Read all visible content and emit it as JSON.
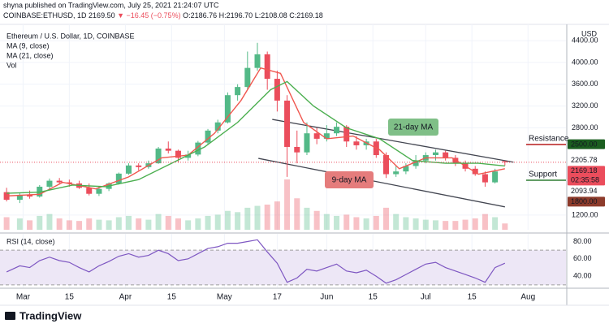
{
  "header": {
    "publisher": "shyna published on TradingView.com, July 25, 2021 21:24:07 UTC",
    "symbol": "COINBASE:ETHUSD, 1D",
    "last": "2169.50",
    "change": "▼ −16.45 (−0.75%)",
    "quote": [
      "O:2186.76",
      "H:2196.70",
      "L:2108.08",
      "C:2169.18"
    ]
  },
  "chart_data": {
    "type": "candlestick",
    "title": "Ethereum / U.S. Dollar, 1D, COINBASE",
    "currency": "USD",
    "up_color": "#53b987",
    "down_color": "#eb4d5c",
    "grid": true,
    "x": [
      -5,
      -1,
      2,
      5,
      8,
      11,
      14,
      17,
      20,
      23,
      26,
      29,
      32,
      35,
      38,
      41,
      44,
      47,
      50,
      53,
      56,
      59,
      62,
      65,
      68,
      71,
      74,
      77,
      80,
      83,
      86,
      89,
      92,
      95,
      98,
      101,
      104,
      107,
      110,
      113,
      116,
      119,
      122,
      125,
      128,
      131,
      134,
      137,
      140,
      143,
      146
    ],
    "open": [
      1620,
      1480,
      1570,
      1540,
      1720,
      1830,
      1800,
      1780,
      1700,
      1590,
      1680,
      1780,
      1960,
      2110,
      2080,
      2150,
      2420,
      2380,
      2250,
      2310,
      2530,
      2750,
      2900,
      3400,
      3550,
      3900,
      4150,
      3700,
      3300,
      2450,
      2350,
      2700,
      2600,
      2700,
      2820,
      2550,
      2480,
      2550,
      2300,
      1950,
      2000,
      2100,
      2200,
      2300,
      2350,
      2250,
      2150,
      2050,
      1950,
      1800,
      2186.76
    ],
    "high": [
      1700,
      1600,
      1650,
      1750,
      1870,
      1880,
      1850,
      1830,
      1780,
      1720,
      1800,
      1980,
      2150,
      2150,
      2200,
      2450,
      2550,
      2400,
      2380,
      2560,
      2780,
      2950,
      3450,
      3600,
      4200,
      4360,
      4200,
      3850,
      3400,
      2750,
      2900,
      2800,
      2850,
      2900,
      2850,
      2650,
      2600,
      2600,
      2350,
      2100,
      2150,
      2300,
      2350,
      2400,
      2380,
      2300,
      2200,
      2100,
      2000,
      2050,
      2196.7
    ],
    "low": [
      1450,
      1420,
      1500,
      1520,
      1680,
      1760,
      1720,
      1680,
      1560,
      1550,
      1640,
      1760,
      1940,
      2020,
      2050,
      2140,
      2330,
      2160,
      2200,
      2280,
      2500,
      2700,
      2880,
      3300,
      3500,
      3850,
      3500,
      3100,
      1900,
      2150,
      2300,
      2500,
      2550,
      2650,
      2450,
      2400,
      2400,
      2250,
      1880,
      1900,
      1950,
      2050,
      2150,
      2200,
      2200,
      2100,
      2000,
      1920,
      1720,
      1780,
      2108.08
    ],
    "close": [
      1480,
      1570,
      1540,
      1720,
      1830,
      1800,
      1780,
      1700,
      1590,
      1680,
      1780,
      1960,
      2110,
      2080,
      2150,
      2420,
      2380,
      2250,
      2310,
      2530,
      2750,
      2900,
      3400,
      3550,
      3900,
      4150,
      3700,
      3300,
      2450,
      2350,
      2700,
      2600,
      2700,
      2820,
      2550,
      2480,
      2550,
      2300,
      1950,
      2000,
      2100,
      2200,
      2300,
      2350,
      2250,
      2150,
      2050,
      1950,
      1800,
      2000,
      2169.18
    ],
    "volume_label": "Vol",
    "volume": [
      20,
      18,
      15,
      22,
      25,
      18,
      15,
      14,
      18,
      16,
      15,
      20,
      22,
      18,
      16,
      25,
      22,
      18,
      15,
      18,
      22,
      24,
      30,
      28,
      35,
      38,
      40,
      45,
      80,
      50,
      35,
      30,
      25,
      22,
      24,
      20,
      18,
      22,
      35,
      25,
      20,
      18,
      16,
      15,
      14,
      14,
      16,
      18,
      25,
      20,
      10
    ],
    "ma": [
      {
        "name": "MA (9, close)",
        "color": "#f0574f",
        "x": [
          -5,
          5,
          12,
          22,
          32,
          42,
          50,
          58,
          66,
          72,
          78,
          85,
          92,
          100,
          108,
          114,
          122,
          130,
          138,
          146
        ],
        "values": [
          1550,
          1580,
          1800,
          1680,
          1900,
          2250,
          2300,
          2700,
          3300,
          3900,
          3800,
          2900,
          2600,
          2650,
          2400,
          2050,
          2250,
          2250,
          1950,
          2050
        ]
      },
      {
        "name": "MA (21, close)",
        "color": "#4caf50",
        "x": [
          -5,
          5,
          15,
          25,
          35,
          45,
          55,
          65,
          75,
          80,
          88,
          98,
          108,
          118,
          128,
          138,
          146
        ],
        "values": [
          1600,
          1620,
          1750,
          1720,
          1850,
          2150,
          2450,
          2900,
          3500,
          3650,
          3200,
          2800,
          2600,
          2200,
          2150,
          2150,
          2100
        ]
      }
    ],
    "channel": {
      "color": "#434651",
      "lines": [
        {
          "x": [
            75.5,
            148.6
          ],
          "values": [
            2955,
            2170
          ]
        },
        {
          "x": [
            71.3,
            146
          ],
          "values": [
            2240,
            1350
          ]
        }
      ]
    },
    "annotations": [
      {
        "text": "21-day MA",
        "color": "#7fbf87"
      },
      {
        "text": "9-day MA",
        "color": "#e57c7c"
      }
    ],
    "levels": [
      {
        "text": "Resistance",
        "color": "#b71c1c"
      },
      {
        "text": "Support",
        "color": "#2e7d32"
      }
    ],
    "price_labels": [
      {
        "value": 2500,
        "label": "2500.00",
        "color": "#1b5e20",
        "text_color": "#ffffff"
      },
      {
        "value": 2205.78,
        "label": "2205.78",
        "color": "#ffffff",
        "text_color": "#131722"
      },
      {
        "value": 2169.18,
        "label": "2169.18",
        "sub": "02:35:58",
        "color": "#eb4d5c",
        "text_color": "#ffffff"
      },
      {
        "value": 2093.94,
        "label": "2093.94",
        "color": "#ffffff",
        "text_color": "#131722"
      },
      {
        "value": 1800,
        "label": "1800.00",
        "color": "#8d3b2b",
        "text_color": "#ffffff"
      }
    ],
    "xlim": [
      -7,
      164.5
    ],
    "xticks": [
      {
        "value": 0,
        "label": "Mar"
      },
      {
        "value": 14,
        "label": "15"
      },
      {
        "value": 31,
        "label": "Apr"
      },
      {
        "value": 45,
        "label": "15"
      },
      {
        "value": 61,
        "label": "May"
      },
      {
        "value": 77,
        "label": "17"
      },
      {
        "value": 92,
        "label": "Jun"
      },
      {
        "value": 106,
        "label": "15"
      },
      {
        "value": 122,
        "label": "Jul"
      },
      {
        "value": 136,
        "label": "15"
      },
      {
        "value": 153,
        "label": "Aug"
      }
    ],
    "ylim": [
      930,
      4580
    ],
    "yticks": [
      {
        "value": 1200,
        "label": "1200.00"
      },
      {
        "value": 2800,
        "label": "2800.00"
      },
      {
        "value": 3200,
        "label": "3200.00"
      },
      {
        "value": 3600,
        "label": "3600.00"
      },
      {
        "value": 4000,
        "label": "4000.00"
      },
      {
        "value": 4400,
        "label": "4400.00"
      }
    ],
    "rsi": {
      "name": "RSI (14, close)",
      "color": "#7e57c2",
      "band": [
        30,
        70
      ],
      "band_color": "#ede7f6",
      "ylim": [
        29,
        87
      ],
      "yticks": [
        {
          "value": 80,
          "label": "80.00"
        },
        {
          "value": 60,
          "label": "60.00"
        },
        {
          "value": 40,
          "label": "40.00"
        }
      ],
      "values": [
        45,
        52,
        50,
        58,
        62,
        58,
        56,
        50,
        45,
        52,
        57,
        63,
        66,
        62,
        64,
        70,
        66,
        58,
        60,
        66,
        72,
        74,
        78,
        78,
        80,
        82,
        68,
        55,
        33,
        38,
        48,
        46,
        50,
        54,
        46,
        44,
        47,
        40,
        32,
        36,
        42,
        48,
        54,
        56,
        50,
        46,
        42,
        38,
        33,
        50,
        55
      ]
    }
  },
  "footer": {
    "brand": "TradingView"
  }
}
